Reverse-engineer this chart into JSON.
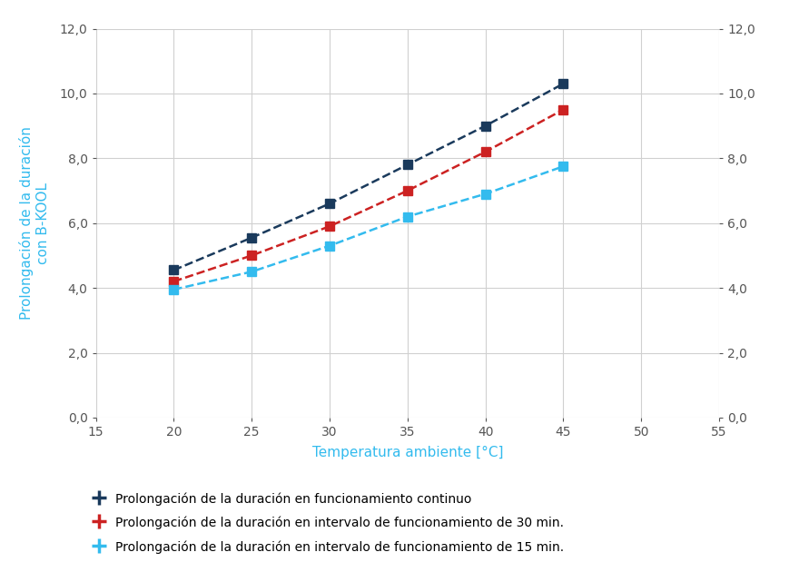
{
  "x": [
    20,
    25,
    30,
    35,
    40,
    45
  ],
  "series": [
    {
      "label": "Prolongación de la duración en funcionamiento continuo",
      "y": [
        4.55,
        5.55,
        6.6,
        7.8,
        9.0,
        10.3
      ],
      "color": "#1a3a5c",
      "marker": "s",
      "linestyle": "--"
    },
    {
      "label": "Prolongación de la duración en intervalo de funcionamiento de 30 min.",
      "y": [
        4.2,
        5.0,
        5.9,
        7.0,
        8.2,
        9.5
      ],
      "color": "#cc2222",
      "marker": "s",
      "linestyle": "--"
    },
    {
      "label": "Prolongación de la duración en intervalo de funcionamiento de 15 min.",
      "y": [
        3.95,
        4.5,
        5.3,
        6.2,
        6.9,
        7.75
      ],
      "color": "#33bbee",
      "marker": "s",
      "linestyle": "--"
    }
  ],
  "xlabel": "Temperatura ambiente [°C]",
  "ylabel": "Prolongación de la duración\ncon B-KOOL",
  "xlim": [
    15,
    55
  ],
  "ylim": [
    0,
    12
  ],
  "xticks": [
    15,
    20,
    25,
    30,
    35,
    40,
    45,
    50,
    55
  ],
  "yticks": [
    0.0,
    2.0,
    4.0,
    6.0,
    8.0,
    10.0,
    12.0
  ],
  "xlabel_color": "#33bbee",
  "ylabel_color": "#33bbee",
  "background_color": "#ffffff",
  "grid_color": "#d0d0d0",
  "legend_fontsize": 10,
  "axis_label_fontsize": 11,
  "tick_fontsize": 10,
  "marker_size": 7,
  "linewidth": 1.8
}
